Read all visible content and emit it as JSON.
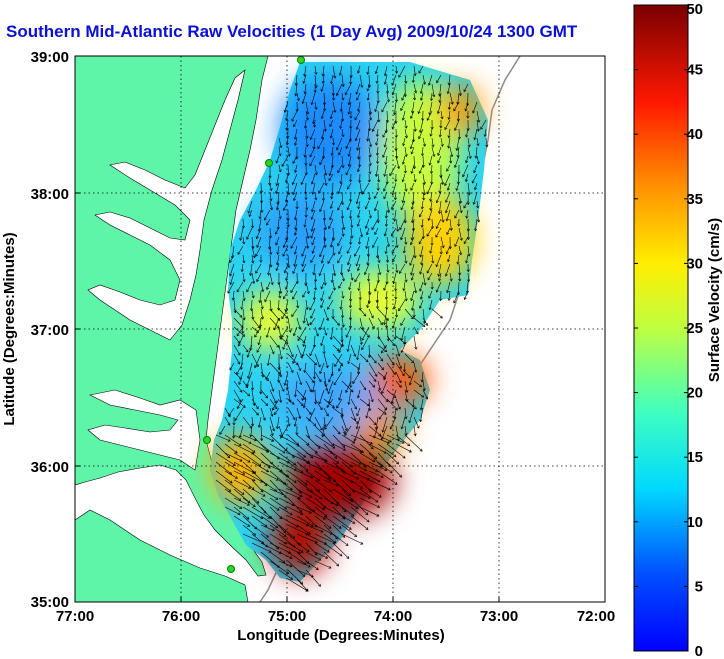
{
  "title": "Southern Mid-Atlantic Raw Velocities (1 Day Avg) 2009/10/24 1300 GMT",
  "map": {
    "xlabel": "Longitude (Degrees:Minutes)",
    "ylabel": "Latitude (Degrees:Minutes)",
    "x_ticks": [
      "77:00",
      "76:00",
      "75:00",
      "74:00",
      "73:00",
      "72:00"
    ],
    "y_ticks": [
      "39:00",
      "38:00",
      "37:00",
      "36:00",
      "35:00"
    ],
    "land_color": "#5ff5a9",
    "background_color": "#ffffff"
  },
  "colorbar": {
    "label": "Surface Velocity (cm/s)",
    "ticks": [
      "0",
      "5",
      "10",
      "15",
      "20",
      "25",
      "30",
      "35",
      "40",
      "45",
      "50"
    ],
    "min": 0,
    "max": 50
  }
}
